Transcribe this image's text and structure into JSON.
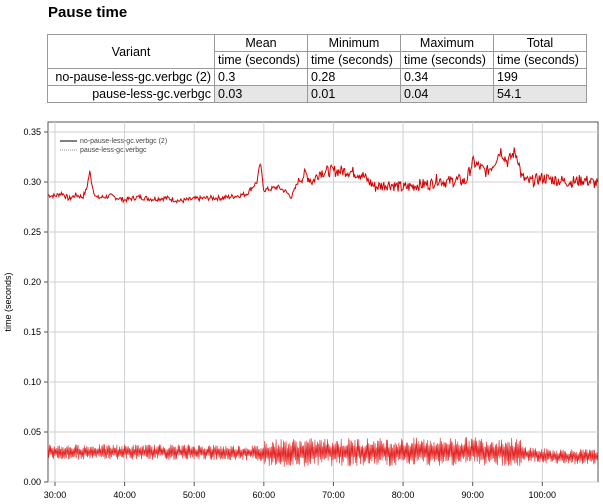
{
  "page": {
    "title": "Pause time"
  },
  "table": {
    "variant_header": "Variant",
    "columns": [
      "Mean",
      "Minimum",
      "Maximum",
      "Total"
    ],
    "units": [
      "time (seconds)",
      "time (seconds)",
      "time (seconds)",
      "time (seconds)"
    ],
    "rows": [
      {
        "variant": "no-pause-less-gc.verbgc (2)",
        "values": [
          "0.3",
          "0.28",
          "0.34",
          "199"
        ]
      },
      {
        "variant": "pause-less-gc.verbgc",
        "values": [
          "0.03",
          "0.01",
          "0.04",
          "54.1"
        ]
      }
    ]
  },
  "chart_data": {
    "type": "line",
    "title": "",
    "xlabel": "",
    "ylabel": "time (seconds)",
    "xlim": [
      "29:00",
      "108:00"
    ],
    "ylim": [
      0,
      0.36
    ],
    "x_ticks": [
      "30:00",
      "40:00",
      "50:00",
      "60:00",
      "70:00",
      "80:00",
      "90:00",
      "100:00"
    ],
    "y_ticks": [
      "0.00",
      "0.05",
      "0.10",
      "0.15",
      "0.20",
      "0.25",
      "0.30",
      "0.35"
    ],
    "grid": true,
    "legend_position": "top-left",
    "series": [
      {
        "name": "no-pause-less-gc.verbgc (2)",
        "color": "#d40000",
        "x": [
          "29:00",
          "30:00",
          "31:00",
          "32:00",
          "33:00",
          "34:00",
          "34:30",
          "35:00",
          "35:30",
          "36:00",
          "38:00",
          "40:00",
          "42:00",
          "44:00",
          "46:00",
          "48:00",
          "50:00",
          "52:00",
          "54:00",
          "56:00",
          "57:30",
          "58:00",
          "59:00",
          "59:30",
          "60:00",
          "61:00",
          "62:00",
          "63:00",
          "64:00",
          "65:00",
          "66:00",
          "67:00",
          "68:00",
          "70:00",
          "72:00",
          "74:00",
          "75:00",
          "76:00",
          "78:00",
          "80:00",
          "82:00",
          "84:00",
          "85:00",
          "86:00",
          "88:00",
          "89:00",
          "90:00",
          "91:00",
          "92:00",
          "93:00",
          "94:00",
          "95:00",
          "96:00",
          "96:30",
          "97:00",
          "98:00",
          "100:00",
          "102:00",
          "104:00",
          "106:00",
          "107:00",
          "108:00"
        ],
        "values": [
          0.287,
          0.286,
          0.289,
          0.283,
          0.287,
          0.285,
          0.292,
          0.31,
          0.292,
          0.284,
          0.286,
          0.282,
          0.285,
          0.283,
          0.284,
          0.281,
          0.283,
          0.284,
          0.284,
          0.286,
          0.288,
          0.292,
          0.3,
          0.319,
          0.292,
          0.293,
          0.295,
          0.291,
          0.285,
          0.302,
          0.308,
          0.3,
          0.31,
          0.311,
          0.311,
          0.308,
          0.301,
          0.295,
          0.298,
          0.294,
          0.297,
          0.298,
          0.303,
          0.3,
          0.302,
          0.3,
          0.32,
          0.315,
          0.31,
          0.318,
          0.332,
          0.32,
          0.33,
          0.324,
          0.305,
          0.3,
          0.304,
          0.302,
          0.3,
          0.302,
          0.3,
          0.298
        ]
      },
      {
        "name": "pause-less-gc.verbgc",
        "color": "#e22020",
        "x": [
          "29:00",
          "40:00",
          "50:00",
          "60:00",
          "70:00",
          "80:00",
          "90:00",
          "96:00",
          "100:00",
          "108:00"
        ],
        "values": [
          0.03,
          0.03,
          0.03,
          0.029,
          0.03,
          0.03,
          0.031,
          0.03,
          0.026,
          0.025
        ],
        "min": 0.01,
        "max": 0.045
      }
    ],
    "annotations": []
  }
}
